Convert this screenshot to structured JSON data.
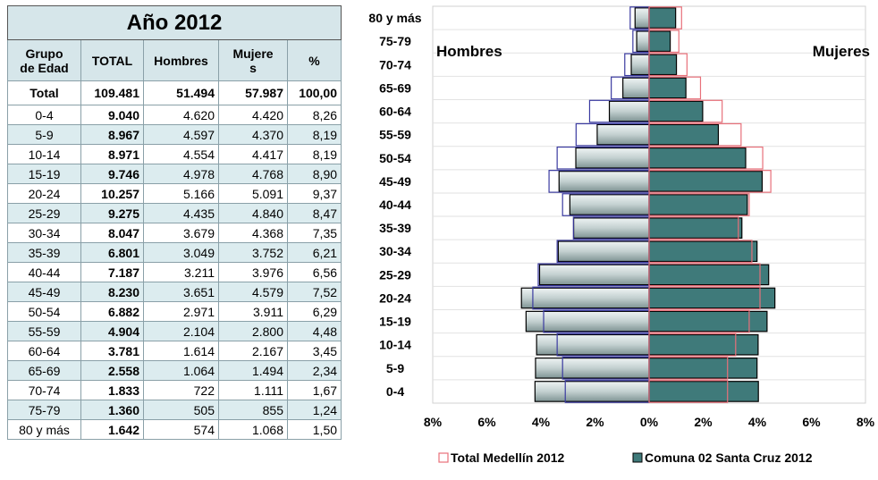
{
  "table": {
    "title": "Año 2012",
    "headers": [
      "Grupo de Edad",
      "TOTAL",
      "Hombres",
      "Mujeres",
      "%"
    ],
    "header_mujeres_lines": [
      "Mujere",
      "s"
    ],
    "header_grupo_lines": [
      "Grupo",
      "de Edad"
    ],
    "total_row": {
      "group": "Total",
      "total": "109.481",
      "hombres": "51.494",
      "mujeres": "57.987",
      "pct": "100,00"
    },
    "rows": [
      {
        "group": "0-4",
        "total": "9.040",
        "hombres": "4.620",
        "mujeres": "4.420",
        "pct": "8,26"
      },
      {
        "group": "5-9",
        "total": "8.967",
        "hombres": "4.597",
        "mujeres": "4.370",
        "pct": "8,19"
      },
      {
        "group": "10-14",
        "total": "8.971",
        "hombres": "4.554",
        "mujeres": "4.417",
        "pct": "8,19"
      },
      {
        "group": "15-19",
        "total": "9.746",
        "hombres": "4.978",
        "mujeres": "4.768",
        "pct": "8,90"
      },
      {
        "group": "20-24",
        "total": "10.257",
        "hombres": "5.166",
        "mujeres": "5.091",
        "pct": "9,37"
      },
      {
        "group": "25-29",
        "total": "9.275",
        "hombres": "4.435",
        "mujeres": "4.840",
        "pct": "8,47"
      },
      {
        "group": "30-34",
        "total": "8.047",
        "hombres": "3.679",
        "mujeres": "4.368",
        "pct": "7,35"
      },
      {
        "group": "35-39",
        "total": "6.801",
        "hombres": "3.049",
        "mujeres": "3.752",
        "pct": "6,21"
      },
      {
        "group": "40-44",
        "total": "7.187",
        "hombres": "3.211",
        "mujeres": "3.976",
        "pct": "6,56"
      },
      {
        "group": "45-49",
        "total": "8.230",
        "hombres": "3.651",
        "mujeres": "4.579",
        "pct": "7,52"
      },
      {
        "group": "50-54",
        "total": "6.882",
        "hombres": "2.971",
        "mujeres": "3.911",
        "pct": "6,29"
      },
      {
        "group": "55-59",
        "total": "4.904",
        "hombres": "2.104",
        "mujeres": "2.800",
        "pct": "4,48"
      },
      {
        "group": "60-64",
        "total": "3.781",
        "hombres": "1.614",
        "mujeres": "2.167",
        "pct": "3,45"
      },
      {
        "group": "65-69",
        "total": "2.558",
        "hombres": "1.064",
        "mujeres": "1.494",
        "pct": "2,34"
      },
      {
        "group": "70-74",
        "total": "1.833",
        "hombres": "722",
        "mujeres": "1.111",
        "pct": "1,67"
      },
      {
        "group": "75-79",
        "total": "1.360",
        "hombres": "505",
        "mujeres": "855",
        "pct": "1,24"
      },
      {
        "group": "80 y más",
        "total": "1.642",
        "hombres": "574",
        "mujeres": "1.068",
        "pct": "1,50"
      }
    ]
  },
  "chart_data": {
    "type": "bar",
    "orientation": "horizontal",
    "subtype": "population-pyramid",
    "categories": [
      "0-4",
      "5-9",
      "10-14",
      "15-19",
      "20-24",
      "25-29",
      "30-34",
      "35-39",
      "40-44",
      "45-49",
      "50-54",
      "55-59",
      "60-64",
      "65-69",
      "70-74",
      "75-79",
      "80 y más"
    ],
    "side_labels": {
      "left": "Hombres",
      "right": "Mujeres"
    },
    "x_ticks": [
      "8%",
      "6%",
      "4%",
      "2%",
      "0%",
      "2%",
      "4%",
      "6%",
      "8%"
    ],
    "xlim": [
      -8,
      8
    ],
    "grid": true,
    "legend_position": "bottom",
    "series": [
      {
        "name": "Total Medellín 2012",
        "style": "outline",
        "hombres": [
          3.1,
          3.2,
          3.4,
          3.9,
          4.3,
          4.1,
          3.4,
          2.8,
          3.2,
          3.7,
          3.4,
          2.7,
          2.2,
          1.4,
          0.9,
          0.6,
          0.7
        ],
        "mujeres": [
          2.9,
          2.9,
          3.2,
          3.7,
          4.1,
          4.1,
          3.8,
          3.3,
          3.7,
          4.5,
          4.2,
          3.4,
          2.7,
          1.9,
          1.4,
          1.1,
          1.2
        ]
      },
      {
        "name": "Comuna 02 Santa Cruz 2012",
        "style": "filled",
        "hombres": [
          4.22,
          4.2,
          4.16,
          4.55,
          4.72,
          4.05,
          3.36,
          2.79,
          2.93,
          3.33,
          2.71,
          1.92,
          1.47,
          0.97,
          0.66,
          0.46,
          0.52
        ],
        "mujeres": [
          4.04,
          3.99,
          4.03,
          4.36,
          4.65,
          4.42,
          3.99,
          3.43,
          3.63,
          4.18,
          3.57,
          2.56,
          1.98,
          1.36,
          1.01,
          0.78,
          0.98
        ]
      }
    ]
  },
  "colors": {
    "outline_series": "#e8707a",
    "outline_series_left": "#3a3aa0",
    "filled_series": "#3f7a7a",
    "table_header_bg": "#d6e6ea",
    "table_alt_bg": "#dcecef"
  }
}
